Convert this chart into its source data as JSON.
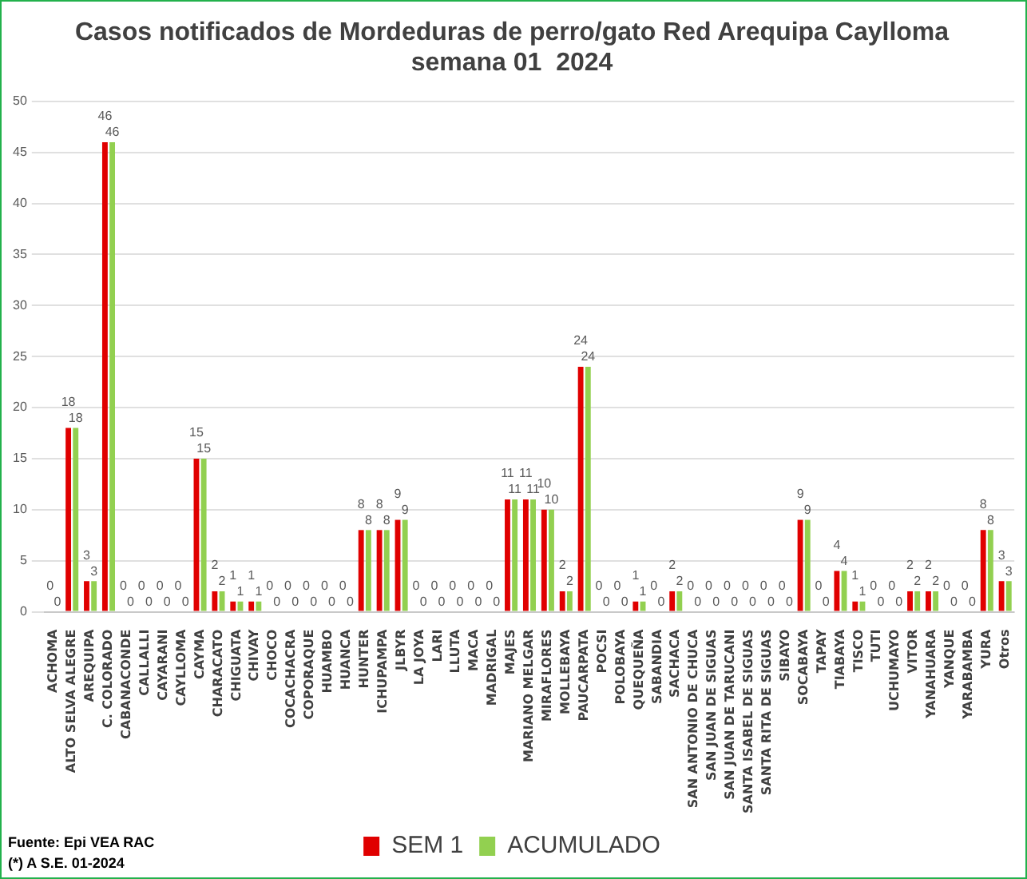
{
  "chart_data": {
    "type": "bar",
    "title": "Casos notificados de Mordeduras de perro/gato Red Arequipa Caylloma",
    "subtitle": "semana 01  2024",
    "categories": [
      "ACHOMA",
      "ALTO SELVA ALEGRE",
      "AREQUIPA",
      "C. COLORADO",
      "CABANACONDE",
      "CALLALLI",
      "CAYARANI",
      "CAYLLOMA",
      "CAYMA",
      "CHARACATO",
      "CHIGUATA",
      "CHIVAY",
      "CHOCO",
      "COCACHACRA",
      "COPORAQUE",
      "HUAMBO",
      "HUANCA",
      "HUNTER",
      "ICHUPAMPA",
      "JLBYR",
      "LA JOYA",
      "LARI",
      "LLUTA",
      "MACA",
      "MADRIGAL",
      "MAJES",
      "MARIANO MELGAR",
      "MIRAFLORES",
      "MOLLEBAYA",
      "PAUCARPATA",
      "POCSI",
      "POLOBAYA",
      "QUEQUEÑA",
      "SABANDIA",
      "SACHACA",
      "SAN ANTONIO DE CHUCA",
      "SAN JUAN DE SIGUAS",
      "SAN JUAN DE TARUCANI",
      "SANTA ISABEL DE SIGUAS",
      "SANTA RITA DE SIGUAS",
      "SIBAYO",
      "SOCABAYA",
      "TAPAY",
      "TIABAYA",
      "TISCO",
      "TUTI",
      "UCHUMAYO",
      "VITOR",
      "YANAHUARA",
      "YANQUE",
      "YARABAMBA",
      "YURA",
      "Otros"
    ],
    "series": [
      {
        "name": "SEM 1",
        "color": "#e00000",
        "values": [
          0,
          18,
          3,
          46,
          0,
          0,
          0,
          0,
          15,
          2,
          1,
          1,
          0,
          0,
          0,
          0,
          0,
          8,
          8,
          9,
          0,
          0,
          0,
          0,
          0,
          11,
          11,
          10,
          2,
          24,
          0,
          0,
          1,
          0,
          2,
          0,
          0,
          0,
          0,
          0,
          0,
          9,
          0,
          4,
          1,
          0,
          0,
          2,
          2,
          0,
          0,
          8,
          3
        ]
      },
      {
        "name": "ACUMULADO",
        "color": "#92d050",
        "values": [
          0,
          18,
          3,
          46,
          0,
          0,
          0,
          0,
          15,
          2,
          1,
          1,
          0,
          0,
          0,
          0,
          0,
          8,
          8,
          9,
          0,
          0,
          0,
          0,
          0,
          11,
          11,
          10,
          2,
          24,
          0,
          0,
          1,
          0,
          2,
          0,
          0,
          0,
          0,
          0,
          0,
          9,
          0,
          4,
          1,
          0,
          0,
          2,
          2,
          0,
          0,
          8,
          3
        ]
      }
    ],
    "ylim": [
      0,
      50
    ],
    "yticks": [
      0,
      5,
      10,
      15,
      20,
      25,
      30,
      35,
      40,
      45,
      50
    ],
    "grid": "y",
    "legend": "bottom",
    "data_labels": true,
    "annotations": [
      "Fuente: Epi VEA RAC",
      "(*) A S.E. 01-2024"
    ]
  }
}
